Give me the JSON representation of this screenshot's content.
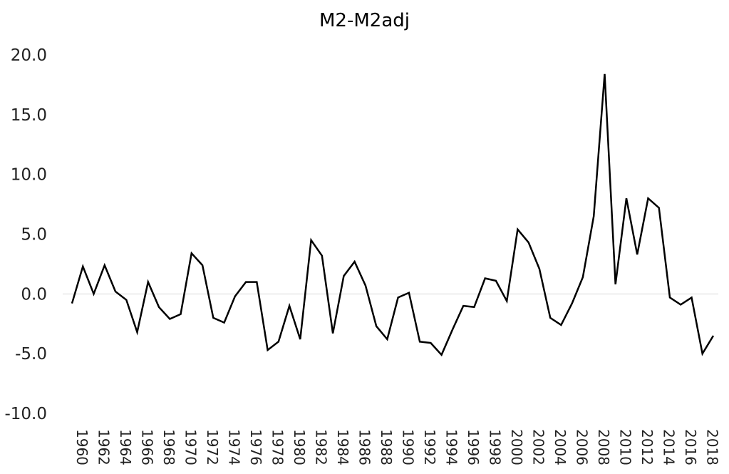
{
  "chart_data": {
    "type": "line",
    "title": "M2-M2adj",
    "xlabel": "",
    "ylabel": "",
    "ylim": [
      -10,
      20
    ],
    "y_ticks": [
      "20.0",
      "15.0",
      "10.0",
      "5.0",
      "0.0",
      "-5.0",
      "-10.0"
    ],
    "x_tick_labels": [
      "1960",
      "1962",
      "1964",
      "1966",
      "1968",
      "1970",
      "1972",
      "1974",
      "1976",
      "1978",
      "1980",
      "1982",
      "1984",
      "1986",
      "1988",
      "1990",
      "1992",
      "1994",
      "1996",
      "1998",
      "2000",
      "2002",
      "2004",
      "2006",
      "2008",
      "2010",
      "2012",
      "2014",
      "2016",
      "2018"
    ],
    "grid": false,
    "legend": "none",
    "series": [
      {
        "color": "#000000",
        "x": [
          1960,
          1961,
          1962,
          1963,
          1964,
          1965,
          1966,
          1967,
          1968,
          1969,
          1970,
          1971,
          1972,
          1973,
          1974,
          1975,
          1976,
          1977,
          1978,
          1979,
          1980,
          1981,
          1982,
          1983,
          1984,
          1985,
          1986,
          1987,
          1988,
          1989,
          1990,
          1991,
          1992,
          1993,
          1994,
          1995,
          1996,
          1997,
          1998,
          1999,
          2000,
          2001,
          2002,
          2003,
          2004,
          2005,
          2006,
          2007,
          2008,
          2009,
          2010,
          2011,
          2012,
          2013,
          2014,
          2015,
          2016,
          2017,
          2018,
          2019
        ],
        "values": [
          -0.8,
          2.3,
          0.0,
          2.4,
          0.2,
          -0.5,
          -3.2,
          1.0,
          -1.1,
          -2.1,
          -1.7,
          3.4,
          2.4,
          -2.0,
          -2.4,
          -0.2,
          1.0,
          1.0,
          -4.7,
          -4.0,
          -1.0,
          -3.8,
          4.5,
          3.2,
          -3.3,
          1.5,
          2.7,
          0.7,
          -2.7,
          -3.8,
          -0.3,
          0.1,
          -4.0,
          -4.1,
          -5.1,
          -3.0,
          -1.0,
          -1.1,
          1.3,
          1.1,
          -0.6,
          5.4,
          4.3,
          2.1,
          -2.0,
          -2.6,
          -0.8,
          1.4,
          6.5,
          18.4,
          0.8,
          8.0,
          3.3,
          8.0,
          7.2,
          -0.3,
          -0.9,
          -0.3,
          -5.0,
          -3.5
        ]
      }
    ]
  }
}
